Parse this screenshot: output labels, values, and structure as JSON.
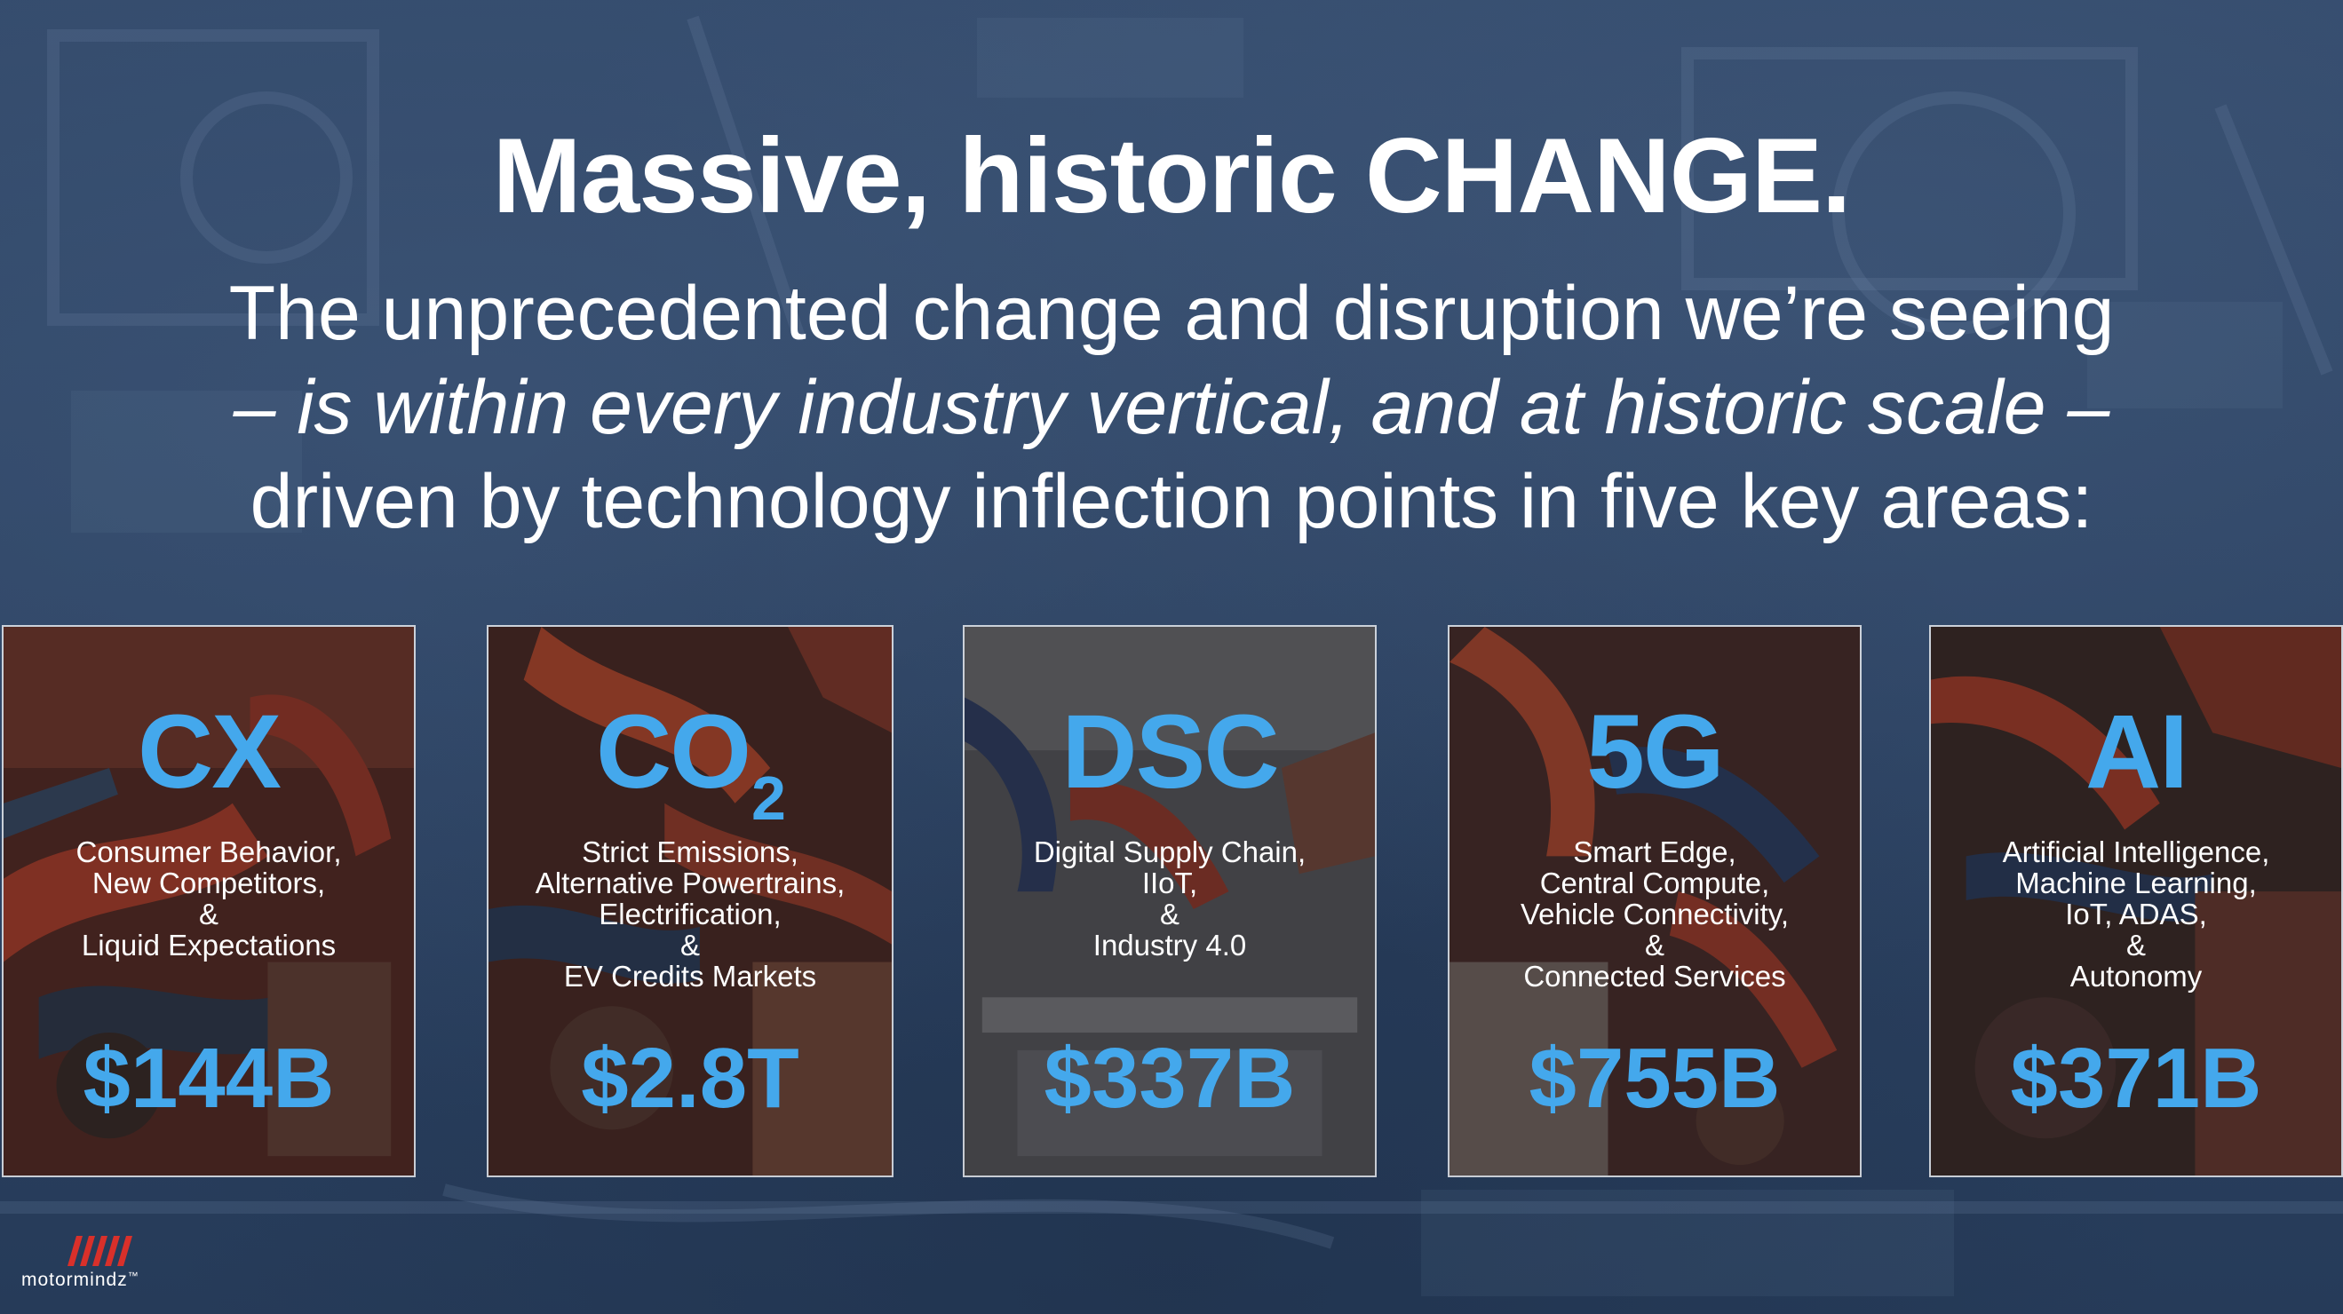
{
  "slide": {
    "title": "Massive, historic CHANGE.",
    "subtitle": {
      "line1": "The unprecedented change and disruption we’re seeing",
      "line2": "– is within every industry vertical, and at historic scale –",
      "line3": "driven by technology inflection points in five key areas:"
    }
  },
  "cards": [
    {
      "code": "CX",
      "code_sub": "",
      "desc": [
        "Consumer Behavior,",
        "New Competitors,",
        "&",
        "Liquid Expectations"
      ],
      "value": "$144B"
    },
    {
      "code": "CO",
      "code_sub": "2",
      "desc": [
        "Strict Emissions,",
        "Alternative Powertrains,",
        "Electrification,",
        "&",
        "EV Credits Markets"
      ],
      "value": "$2.8T"
    },
    {
      "code": "DSC",
      "code_sub": "",
      "desc": [
        "Digital Supply Chain,",
        "IIoT,",
        "&",
        "Industry 4.0"
      ],
      "value": "$337B"
    },
    {
      "code": "5G",
      "code_sub": "",
      "desc": [
        "Smart Edge,",
        "Central Compute,",
        "Vehicle Connectivity,",
        "&",
        "Connected Services"
      ],
      "value": "$755B"
    },
    {
      "code": "AI",
      "code_sub": "",
      "desc": [
        "Artificial Intelligence,",
        "Machine Learning,",
        "IoT, ADAS,",
        "&",
        "Autonomy"
      ],
      "value": "$371B"
    }
  ],
  "logo": {
    "wordmark": "motormindz",
    "trademark": "™",
    "mark_icon": "motormindz-stripes-icon"
  },
  "colors": {
    "background": "#2d4463",
    "accent_blue": "#44a8ec",
    "text": "#ffffff",
    "logo_red": "#d9302a"
  }
}
